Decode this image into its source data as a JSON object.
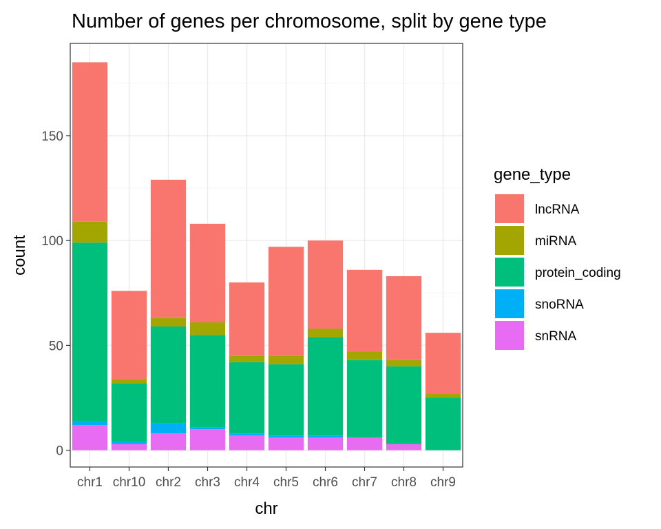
{
  "chart_data": {
    "type": "bar",
    "stacked": true,
    "title": "Number of genes per chromosome, split by gene type",
    "xlabel": "chr",
    "ylabel": "count",
    "categories": [
      "chr1",
      "chr10",
      "chr2",
      "chr3",
      "chr4",
      "chr5",
      "chr6",
      "chr7",
      "chr8",
      "chr9"
    ],
    "ylim": [
      -8,
      194
    ],
    "yticks": [
      0,
      50,
      100,
      150
    ],
    "grid": true,
    "legend": {
      "title": "gene_type",
      "position": "right"
    },
    "series": [
      {
        "name": "snRNA",
        "color": "#E76BF3",
        "values": [
          12,
          3,
          8,
          10,
          7,
          6,
          6,
          6,
          3,
          0
        ]
      },
      {
        "name": "snoRNA",
        "color": "#00B0F6",
        "values": [
          2,
          1,
          5,
          1,
          1,
          1,
          1,
          0,
          0,
          0
        ]
      },
      {
        "name": "protein_coding",
        "color": "#00BF7D",
        "values": [
          85,
          28,
          46,
          44,
          34,
          34,
          47,
          37,
          37,
          25
        ]
      },
      {
        "name": "miRNA",
        "color": "#A3A500",
        "values": [
          10,
          2,
          4,
          6,
          3,
          4,
          4,
          4,
          3,
          2
        ]
      },
      {
        "name": "lncRNA",
        "color": "#F8766D",
        "values": [
          76,
          42,
          66,
          47,
          35,
          52,
          42,
          39,
          40,
          29
        ]
      }
    ],
    "legend_order": [
      "lncRNA",
      "miRNA",
      "protein_coding",
      "snoRNA",
      "snRNA"
    ]
  }
}
